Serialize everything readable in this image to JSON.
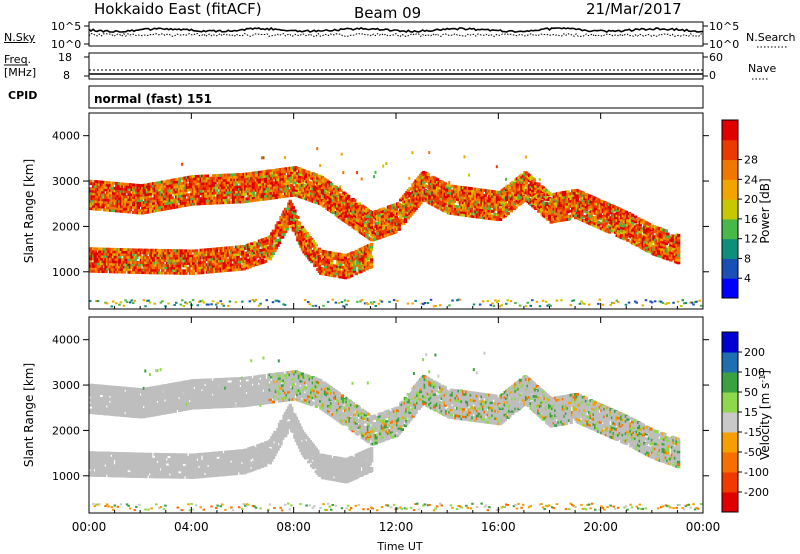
{
  "header": {
    "station": "Hokkaido East (fitACF)",
    "beam": "Beam 09",
    "date": "21/Mar/2017"
  },
  "noise_panel": {
    "left_label": "N.Sky",
    "right_label": "N.Search",
    "left_ticks": [
      "10^5",
      "10^0"
    ],
    "right_ticks": [
      "10^5",
      "10^0"
    ]
  },
  "freq_panel": {
    "left_label_line1": "Freq.",
    "left_label_line2": "[MHz]",
    "left_ticks": [
      "18",
      "8"
    ],
    "right_label": "Nave",
    "right_ticks": [
      "60",
      "0"
    ]
  },
  "cpid_panel": {
    "label": "CPID",
    "value": "normal (fast) 151"
  },
  "colors": {
    "power_scale": [
      "#0000ff",
      "#1a4fb5",
      "#0f8f7a",
      "#48b848",
      "#c8c800",
      "#f2a500",
      "#f07800",
      "#ea3a00",
      "#e00000"
    ],
    "velocity_scale": [
      "#e00000",
      "#f03a00",
      "#f57000",
      "#f5a000",
      "#c9c9c9",
      "#8fd84b",
      "#3aa040",
      "#1e6fb0",
      "#0000d0"
    ],
    "ground_scatter": "#bebebe"
  },
  "chart_data": [
    {
      "type": "heatmap",
      "title": "",
      "xlabel": "",
      "ylabel": "Slant Range [km]",
      "x_ticks": [
        "00:00",
        "04:00",
        "08:00",
        "12:00",
        "16:00",
        "20:00",
        "00:00"
      ],
      "x_range_hours": [
        0,
        24
      ],
      "ylim": [
        180,
        4500
      ],
      "y_ticks": [
        1000,
        2000,
        3000,
        4000
      ],
      "colorbar": {
        "label": "Power [dB]",
        "ticks": [
          4,
          8,
          12,
          16,
          20,
          24,
          28
        ],
        "range": [
          0,
          30
        ]
      },
      "echo_bands": [
        {
          "name": "lower band",
          "points": [
            [
              0,
              1250
            ],
            [
              2,
              1220
            ],
            [
              4,
              1200
            ],
            [
              6,
              1300
            ],
            [
              7,
              1500
            ],
            [
              7.8,
              2300
            ],
            [
              8.3,
              1700
            ],
            [
              9,
              1200
            ],
            [
              10,
              1100
            ],
            [
              11,
              1350
            ]
          ]
        },
        {
          "name": "upper band",
          "points": [
            [
              0,
              2700
            ],
            [
              2,
              2600
            ],
            [
              4,
              2800
            ],
            [
              6,
              2850
            ],
            [
              8,
              3000
            ],
            [
              9,
              2800
            ],
            [
              10,
              2400
            ],
            [
              11,
              2000
            ],
            [
              12,
              2200
            ],
            [
              13,
              2900
            ],
            [
              14,
              2600
            ],
            [
              16,
              2450
            ],
            [
              17,
              2900
            ],
            [
              18,
              2400
            ],
            [
              19,
              2500
            ],
            [
              21,
              2000
            ],
            [
              22,
              1700
            ],
            [
              23,
              1500
            ]
          ]
        }
      ]
    },
    {
      "type": "heatmap",
      "title": "",
      "xlabel": "Time UT",
      "ylabel": "Slant Range [km]",
      "x_ticks": [
        "00:00",
        "04:00",
        "08:00",
        "12:00",
        "16:00",
        "20:00",
        "00:00"
      ],
      "x_range_hours": [
        0,
        24
      ],
      "ylim": [
        180,
        4500
      ],
      "y_ticks": [
        1000,
        2000,
        3000,
        4000
      ],
      "colorbar": {
        "label": "Velocity [m s^-1]",
        "ticks": [
          200,
          100,
          50,
          15,
          -15,
          -50,
          -100,
          -200
        ],
        "range": [
          -250,
          250
        ]
      }
    }
  ]
}
